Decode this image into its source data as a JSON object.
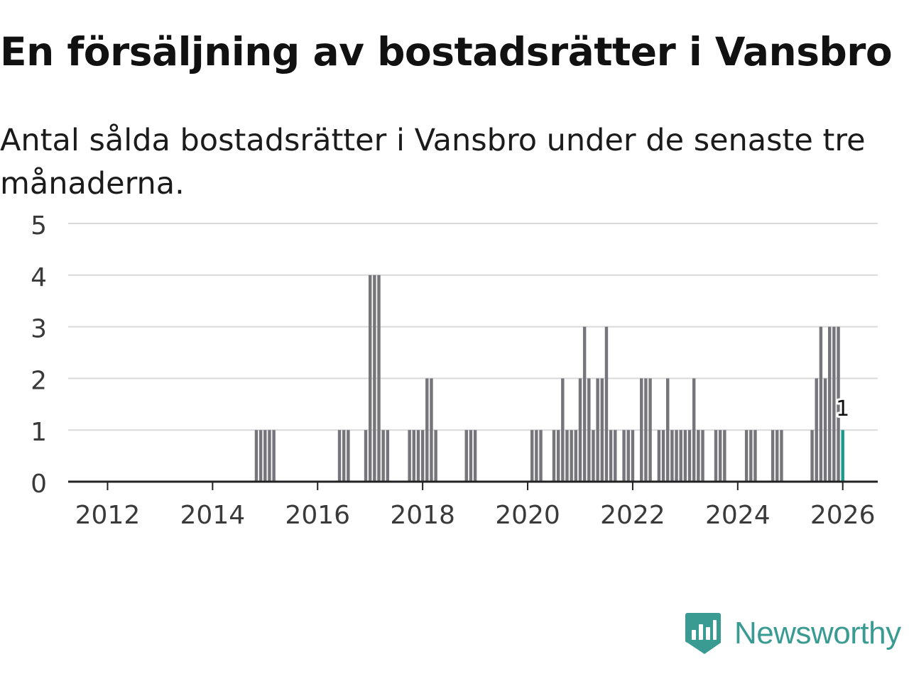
{
  "title": "En försäljning av bostadsrätter i Vansbro",
  "subtitle": "Antal sålda bostadsrätter i Vansbro under de senaste tre månaderna.",
  "brand": {
    "name": "Newsworthy",
    "icon": "newsworthy-logo-icon"
  },
  "colors": {
    "bar": "#76757b",
    "highlight": "#1a9a8c",
    "grid": "#d9d9d9",
    "axis": "#222222",
    "brand": "#3a9b93"
  },
  "chart_data": {
    "type": "bar",
    "title": "",
    "xlabel": "",
    "ylabel": "",
    "ylim": [
      0,
      5
    ],
    "yticks": [
      0,
      1,
      2,
      3,
      4,
      5
    ],
    "xticks": [
      "2012",
      "2014",
      "2016",
      "2018",
      "2020",
      "2022",
      "2024",
      "2026"
    ],
    "xlim": [
      "2011-04",
      "2026-09"
    ],
    "grid": true,
    "legend": "none",
    "series": [
      {
        "name": "Sålda bostadsrätter",
        "points": [
          {
            "month": "2014-11",
            "value": 1
          },
          {
            "month": "2014-12",
            "value": 1
          },
          {
            "month": "2015-01",
            "value": 1
          },
          {
            "month": "2015-02",
            "value": 1
          },
          {
            "month": "2015-03",
            "value": 1
          },
          {
            "month": "2016-06",
            "value": 1
          },
          {
            "month": "2016-07",
            "value": 1
          },
          {
            "month": "2016-08",
            "value": 1
          },
          {
            "month": "2016-12",
            "value": 1
          },
          {
            "month": "2017-01",
            "value": 4
          },
          {
            "month": "2017-02",
            "value": 4
          },
          {
            "month": "2017-03",
            "value": 4
          },
          {
            "month": "2017-04",
            "value": 1
          },
          {
            "month": "2017-05",
            "value": 1
          },
          {
            "month": "2017-10",
            "value": 1
          },
          {
            "month": "2017-11",
            "value": 1
          },
          {
            "month": "2017-12",
            "value": 1
          },
          {
            "month": "2018-01",
            "value": 1
          },
          {
            "month": "2018-02",
            "value": 2
          },
          {
            "month": "2018-03",
            "value": 2
          },
          {
            "month": "2018-04",
            "value": 1
          },
          {
            "month": "2018-11",
            "value": 1
          },
          {
            "month": "2018-12",
            "value": 1
          },
          {
            "month": "2019-01",
            "value": 1
          },
          {
            "month": "2020-02",
            "value": 1
          },
          {
            "month": "2020-03",
            "value": 1
          },
          {
            "month": "2020-04",
            "value": 1
          },
          {
            "month": "2020-07",
            "value": 1
          },
          {
            "month": "2020-08",
            "value": 1
          },
          {
            "month": "2020-09",
            "value": 2
          },
          {
            "month": "2020-10",
            "value": 1
          },
          {
            "month": "2020-11",
            "value": 1
          },
          {
            "month": "2020-12",
            "value": 1
          },
          {
            "month": "2021-01",
            "value": 2
          },
          {
            "month": "2021-02",
            "value": 3
          },
          {
            "month": "2021-03",
            "value": 2
          },
          {
            "month": "2021-04",
            "value": 1
          },
          {
            "month": "2021-05",
            "value": 2
          },
          {
            "month": "2021-06",
            "value": 2
          },
          {
            "month": "2021-07",
            "value": 3
          },
          {
            "month": "2021-08",
            "value": 1
          },
          {
            "month": "2021-09",
            "value": 1
          },
          {
            "month": "2021-11",
            "value": 1
          },
          {
            "month": "2021-12",
            "value": 1
          },
          {
            "month": "2022-01",
            "value": 1
          },
          {
            "month": "2022-03",
            "value": 2
          },
          {
            "month": "2022-04",
            "value": 2
          },
          {
            "month": "2022-05",
            "value": 2
          },
          {
            "month": "2022-07",
            "value": 1
          },
          {
            "month": "2022-08",
            "value": 1
          },
          {
            "month": "2022-09",
            "value": 2
          },
          {
            "month": "2022-10",
            "value": 1
          },
          {
            "month": "2022-11",
            "value": 1
          },
          {
            "month": "2022-12",
            "value": 1
          },
          {
            "month": "2023-01",
            "value": 1
          },
          {
            "month": "2023-02",
            "value": 1
          },
          {
            "month": "2023-03",
            "value": 2
          },
          {
            "month": "2023-04",
            "value": 1
          },
          {
            "month": "2023-05",
            "value": 1
          },
          {
            "month": "2023-08",
            "value": 1
          },
          {
            "month": "2023-09",
            "value": 1
          },
          {
            "month": "2023-10",
            "value": 1
          },
          {
            "month": "2024-03",
            "value": 1
          },
          {
            "month": "2024-04",
            "value": 1
          },
          {
            "month": "2024-05",
            "value": 1
          },
          {
            "month": "2024-09",
            "value": 1
          },
          {
            "month": "2024-10",
            "value": 1
          },
          {
            "month": "2024-11",
            "value": 1
          },
          {
            "month": "2025-06",
            "value": 1
          },
          {
            "month": "2025-07",
            "value": 2
          },
          {
            "month": "2025-08",
            "value": 3
          },
          {
            "month": "2025-09",
            "value": 2
          },
          {
            "month": "2025-10",
            "value": 3
          },
          {
            "month": "2025-11",
            "value": 3
          },
          {
            "month": "2025-12",
            "value": 3
          },
          {
            "month": "2026-01",
            "value": 1
          }
        ]
      }
    ],
    "highlight": {
      "month": "2026-01",
      "value": 1,
      "label": "1"
    }
  }
}
